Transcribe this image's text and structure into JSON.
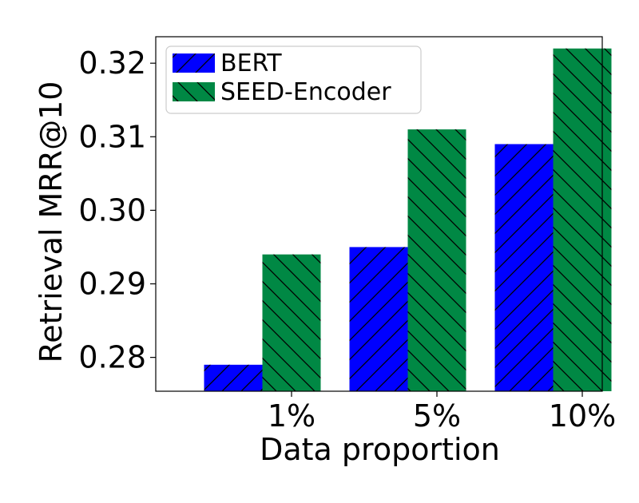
{
  "chart_data": {
    "type": "bar",
    "categories": [
      "1%",
      "5%",
      "10%"
    ],
    "series": [
      {
        "name": "BERT",
        "values": [
          0.279,
          0.295,
          0.309
        ],
        "color": "#0000ff",
        "hatch": "/"
      },
      {
        "name": "SEED-Encoder",
        "values": [
          0.294,
          0.311,
          0.322
        ],
        "color": "#008844",
        "hatch": "\\"
      }
    ],
    "xlabel": "Data proportion",
    "ylabel": "Retrieval MRR@10",
    "ylim": [
      0.2754,
      0.3236
    ],
    "yticks": [
      0.28,
      0.29,
      0.3,
      0.31,
      0.32
    ],
    "ytick_labels": [
      "0.28",
      "0.29",
      "0.30",
      "0.31",
      "0.32"
    ],
    "grid": false,
    "legend_position": "top-left"
  }
}
